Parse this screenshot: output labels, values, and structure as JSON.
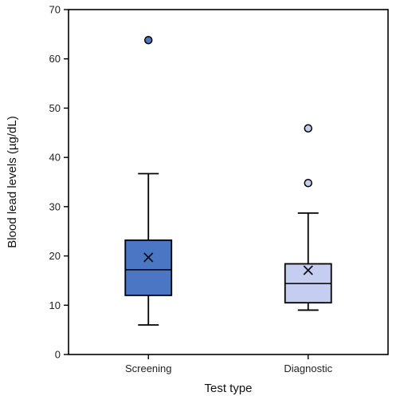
{
  "chart_data": {
    "type": "box",
    "title": "",
    "xlabel": "Test type",
    "ylabel": "Blood lead levels (µg/dL)",
    "ylim": [
      0,
      70
    ],
    "yticks": [
      0,
      10,
      20,
      30,
      40,
      50,
      60,
      70
    ],
    "grid": false,
    "legend": "none",
    "categories": [
      "Screening",
      "Diagnostic"
    ],
    "boxes": [
      {
        "category": "Screening",
        "whisker_low": 6,
        "q1": 12,
        "median": 17.2,
        "q3": 23.2,
        "whisker_high": 36.7,
        "mean": 19.7,
        "outliers": [
          63.8
        ],
        "color": "#4a76c4"
      },
      {
        "category": "Diagnostic",
        "whisker_low": 9,
        "q1": 10.5,
        "median": 14.4,
        "q3": 18.4,
        "whisker_high": 28.7,
        "mean": 17.1,
        "outliers": [
          34.8,
          45.9
        ],
        "color": "#c5cdf0"
      }
    ]
  }
}
